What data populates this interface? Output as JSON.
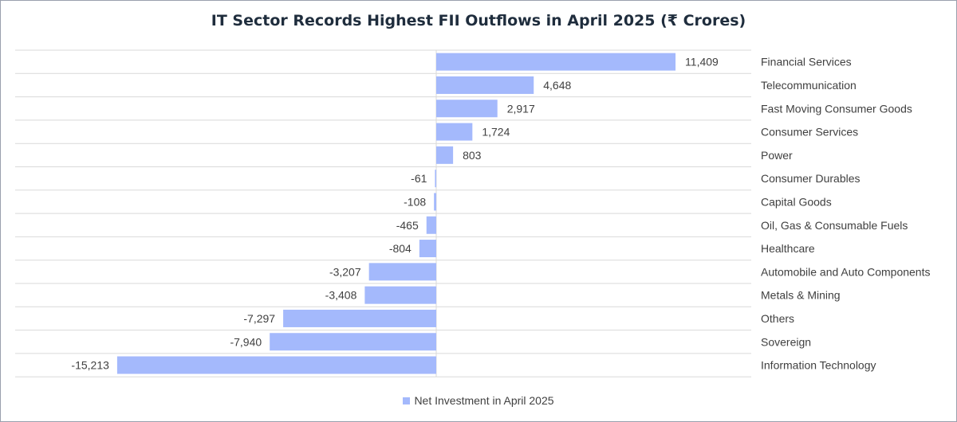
{
  "colors": {
    "bar": "#a4b9fc",
    "grid": "#d9d9d9",
    "text": "#404040",
    "title": "#1f2d3d"
  },
  "chart_data": {
    "type": "bar",
    "orientation": "horizontal",
    "title": "IT Sector Records Highest FII Outflows in April 2025 (₹ Crores)",
    "categories": [
      "Financial Services",
      "Telecommunication",
      "Fast Moving Consumer Goods",
      "Consumer Services",
      "Power",
      "Consumer Durables",
      "Capital Goods",
      "Oil, Gas & Consumable Fuels",
      "Healthcare",
      "Automobile and Auto Components",
      "Metals & Mining",
      "Others",
      "Sovereign",
      "Information Technology"
    ],
    "series": [
      {
        "name": "Net Investment in April 2025",
        "values": [
          11409,
          4648,
          2917,
          1724,
          803,
          -61,
          -108,
          -465,
          -804,
          -3207,
          -3408,
          -7297,
          -7940,
          -15213
        ],
        "labels": [
          "11,409",
          "4,648",
          "2,917",
          "1,724",
          "803",
          "-61",
          "-108",
          "-465",
          "-804",
          "-3,207",
          "-3,408",
          "-7,297",
          "-7,940",
          "-15,213"
        ]
      }
    ],
    "xlim": [
      -20000,
      15000
    ],
    "grid": "horizontal",
    "legend_position": "bottom",
    "category_labels_position": "right"
  }
}
